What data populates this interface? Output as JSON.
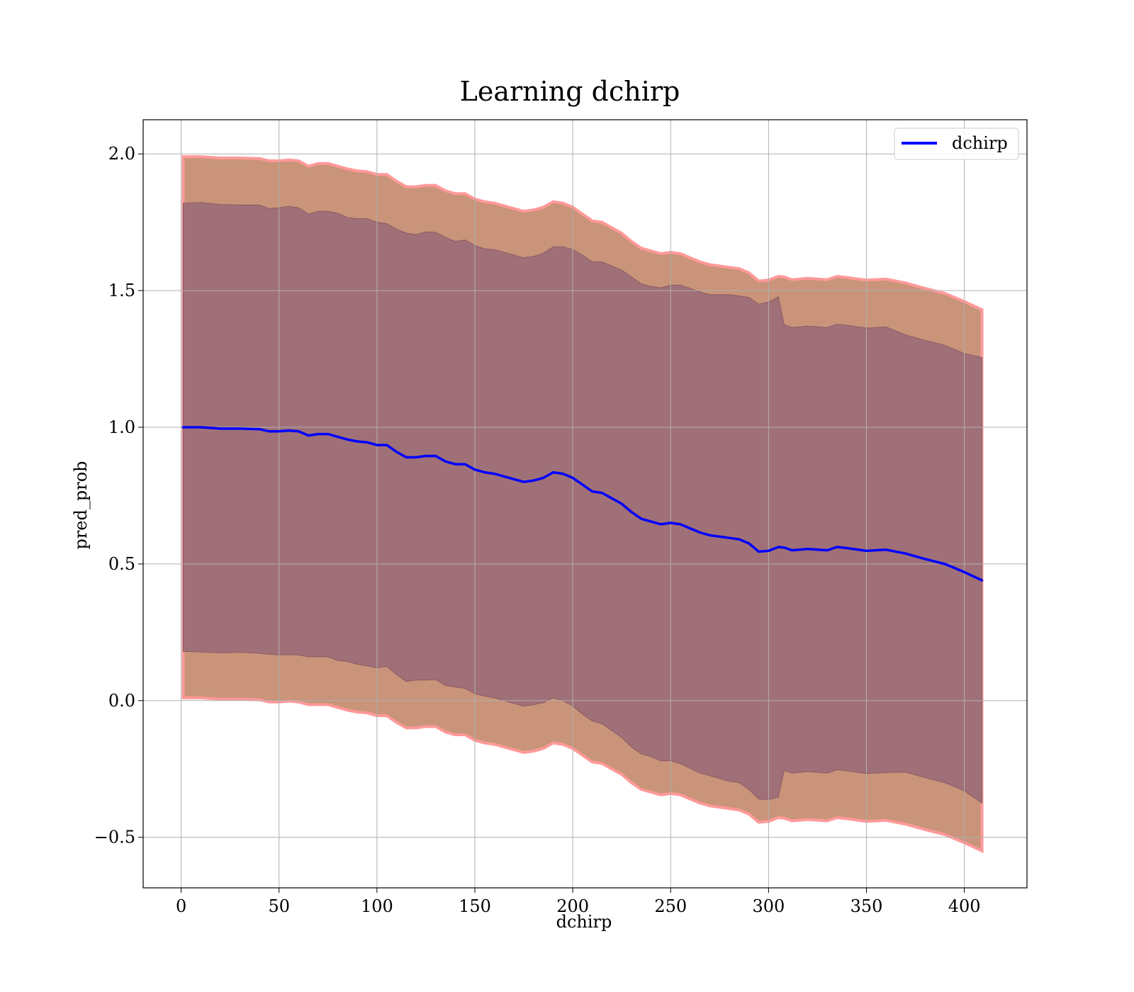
{
  "chart_data": {
    "type": "line",
    "title": "Learning dchirp",
    "xlabel": "dchirp",
    "ylabel": "pred_prob",
    "xlim": [
      -19.4,
      432
    ],
    "ylim": [
      -0.685,
      2.125
    ],
    "xticks": [
      0,
      50,
      100,
      150,
      200,
      250,
      300,
      350,
      400
    ],
    "xtick_labels": [
      "0",
      "50",
      "100",
      "150",
      "200",
      "250",
      "300",
      "350",
      "400"
    ],
    "yticks": [
      -0.5,
      0.0,
      0.5,
      1.0,
      1.5,
      2.0
    ],
    "ytick_labels": [
      "−0.5",
      "0.0",
      "0.5",
      "1.0",
      "1.5",
      "2.0"
    ],
    "grid": true,
    "legend": {
      "position": "upper right",
      "entries": [
        "dchirp"
      ]
    },
    "colors": {
      "line": "#0000ff",
      "inner_band": "#a07078",
      "outer_band": "#c99479",
      "band_edge": "#ff9999",
      "grid": "#b0b0b0"
    },
    "series": [
      {
        "name": "dchirp",
        "x": [
          1,
          10,
          20,
          30,
          40,
          45,
          50,
          55,
          60,
          65,
          70,
          75,
          80,
          85,
          90,
          95,
          100,
          105,
          110,
          115,
          120,
          125,
          130,
          135,
          140,
          145,
          150,
          155,
          160,
          165,
          170,
          175,
          180,
          185,
          190,
          195,
          200,
          205,
          210,
          215,
          220,
          225,
          230,
          235,
          240,
          245,
          250,
          255,
          260,
          265,
          270,
          275,
          280,
          285,
          290,
          295,
          300,
          305,
          308,
          312,
          320,
          330,
          335,
          340,
          350,
          360,
          370,
          380,
          390,
          400,
          409
        ],
        "y": [
          1.0,
          1.0,
          0.995,
          0.995,
          0.993,
          0.985,
          0.985,
          0.988,
          0.985,
          0.97,
          0.975,
          0.975,
          0.965,
          0.955,
          0.948,
          0.945,
          0.935,
          0.935,
          0.91,
          0.89,
          0.89,
          0.895,
          0.895,
          0.875,
          0.865,
          0.865,
          0.845,
          0.835,
          0.83,
          0.82,
          0.81,
          0.8,
          0.805,
          0.815,
          0.835,
          0.83,
          0.815,
          0.79,
          0.765,
          0.76,
          0.74,
          0.72,
          0.69,
          0.665,
          0.655,
          0.645,
          0.65,
          0.645,
          0.63,
          0.615,
          0.605,
          0.6,
          0.595,
          0.59,
          0.575,
          0.545,
          0.548,
          0.562,
          0.56,
          0.55,
          0.555,
          0.55,
          0.562,
          0.558,
          0.548,
          0.552,
          0.538,
          0.518,
          0.5,
          0.47,
          0.44
        ],
        "std_inner": [
          0.82,
          0.822,
          0.82,
          0.818,
          0.82,
          0.815,
          0.818,
          0.82,
          0.818,
          0.81,
          0.815,
          0.815,
          0.818,
          0.812,
          0.815,
          0.818,
          0.815,
          0.81,
          0.815,
          0.82,
          0.815,
          0.82,
          0.818,
          0.82,
          0.815,
          0.82,
          0.82,
          0.818,
          0.82,
          0.82,
          0.82,
          0.82,
          0.82,
          0.822,
          0.825,
          0.83,
          0.835,
          0.84,
          0.84,
          0.845,
          0.85,
          0.855,
          0.86,
          0.86,
          0.86,
          0.865,
          0.87,
          0.875,
          0.878,
          0.88,
          0.88,
          0.885,
          0.89,
          0.89,
          0.9,
          0.905,
          0.91,
          0.915,
          0.815,
          0.815,
          0.815,
          0.815,
          0.815,
          0.815,
          0.815,
          0.815,
          0.8,
          0.8,
          0.8,
          0.8,
          0.815
        ],
        "std_outer": [
          0.99,
          0.99,
          0.99,
          0.99,
          0.99,
          0.99,
          0.99,
          0.99,
          0.99,
          0.985,
          0.99,
          0.99,
          0.99,
          0.99,
          0.99,
          0.99,
          0.99,
          0.99,
          0.99,
          0.99,
          0.99,
          0.99,
          0.99,
          0.99,
          0.99,
          0.99,
          0.99,
          0.99,
          0.99,
          0.99,
          0.99,
          0.99,
          0.99,
          0.99,
          0.99,
          0.99,
          0.99,
          0.99,
          0.99,
          0.99,
          0.99,
          0.99,
          0.99,
          0.99,
          0.99,
          0.99,
          0.99,
          0.99,
          0.99,
          0.99,
          0.99,
          0.99,
          0.99,
          0.99,
          0.99,
          0.99,
          0.99,
          0.99,
          0.99,
          0.99,
          0.99,
          0.99,
          0.99,
          0.99,
          0.99,
          0.99,
          0.99,
          0.99,
          0.99,
          0.99,
          0.99
        ]
      }
    ]
  }
}
